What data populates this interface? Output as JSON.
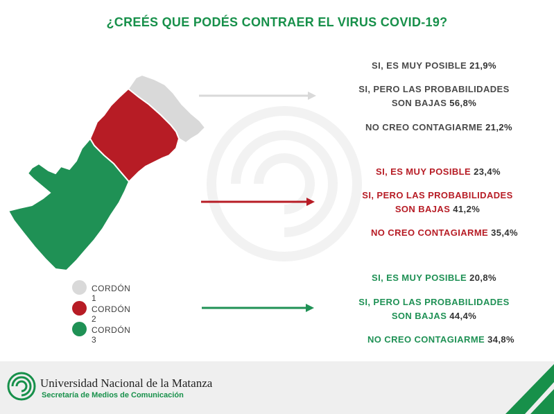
{
  "title": "¿CREÉS QUE PODÉS CONTRAER EL VIRUS COVID-19?",
  "colors": {
    "title": "#17904a",
    "cordon1": "#d9d9d9",
    "cordon2": "#b71c25",
    "cordon3": "#1f9155",
    "text_gray": "#4a4a4a",
    "text_red": "#b71c25",
    "text_green": "#1f9155",
    "footer_bg": "#efefef"
  },
  "legend": [
    {
      "label": "CORDÓN 1",
      "color": "#d9d9d9"
    },
    {
      "label": "CORDÓN 2",
      "color": "#b71c25"
    },
    {
      "label": "CORDÓN 3",
      "color": "#1f9155"
    }
  ],
  "groups": [
    {
      "color": "#4a4a4a",
      "answers": [
        {
          "line1": "SI, ES MUY POSIBLE",
          "line2": "",
          "pct": "21,9%"
        },
        {
          "line1": "SI, PERO LAS PROBABILIDADES",
          "line2": "SON BAJAS",
          "pct": "56,8%"
        },
        {
          "line1": "NO CREO CONTAGIARME",
          "line2": "",
          "pct": "21,2%"
        }
      ]
    },
    {
      "color": "#b71c25",
      "answers": [
        {
          "line1": "SI, ES MUY POSIBLE",
          "line2": "",
          "pct": "23,4%"
        },
        {
          "line1": "SI, PERO LAS PROBABILIDADES",
          "line2": "SON BAJAS",
          "pct": "41,2%"
        },
        {
          "line1": "NO CREO CONTAGIARME",
          "line2": "",
          "pct": "35,4%"
        }
      ]
    },
    {
      "color": "#1f9155",
      "answers": [
        {
          "line1": "SI, ES MUY POSIBLE",
          "line2": "",
          "pct": "20,8%"
        },
        {
          "line1": "SI, PERO LAS PROBABILIDADES",
          "line2": "SON BAJAS",
          "pct": "44,4%"
        },
        {
          "line1": "NO CREO CONTAGIARME",
          "line2": "",
          "pct": "34,8%"
        }
      ]
    }
  ],
  "chart_data": {
    "type": "table",
    "title": "¿CREÉS QUE PODÉS CONTRAER EL VIRUS COVID-19?",
    "categories": [
      "SI, ES MUY POSIBLE",
      "SI, PERO LAS PROBABILIDADES SON BAJAS",
      "NO CREO CONTAGIARME"
    ],
    "series": [
      {
        "name": "CORDÓN 1",
        "values": [
          21.9,
          56.8,
          21.2
        ]
      },
      {
        "name": "CORDÓN 2",
        "values": [
          23.4,
          41.2,
          35.4
        ]
      },
      {
        "name": "CORDÓN 3",
        "values": [
          20.8,
          44.4,
          34.8
        ]
      }
    ],
    "units": "%",
    "legend": "bottom-left"
  },
  "footer": {
    "university": "Universidad Nacional de la Matanza",
    "subtitle": "Secretaría de Medios de Comunicación"
  }
}
